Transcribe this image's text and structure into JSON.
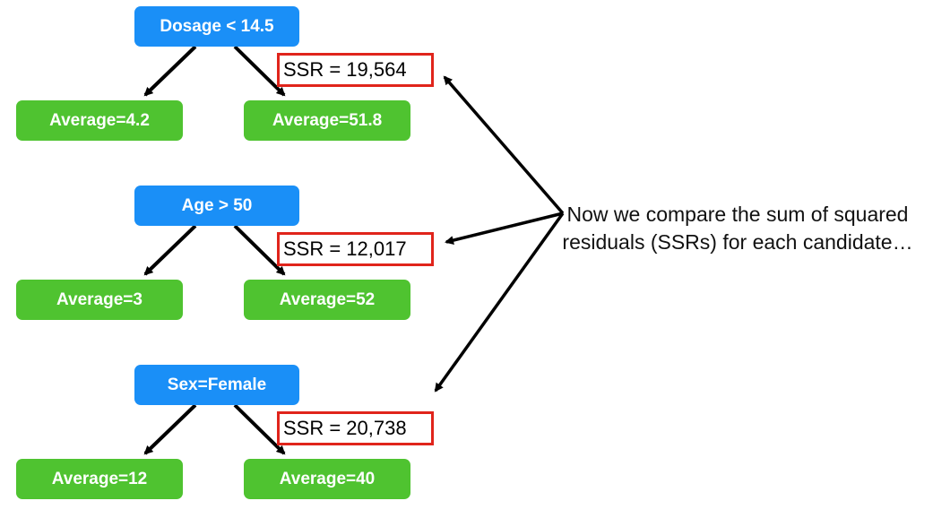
{
  "trees": [
    {
      "root": "Dosage < 14.5",
      "ssr": "SSR = 19,564",
      "left_leaf": "Average=4.2",
      "right_leaf": "Average=51.8"
    },
    {
      "root": "Age > 50",
      "ssr": "SSR = 12,017",
      "left_leaf": "Average=3",
      "right_leaf": "Average=52"
    },
    {
      "root": "Sex=Female",
      "ssr": "SSR = 20,738",
      "left_leaf": "Average=12",
      "right_leaf": "Average=40"
    }
  ],
  "note": "Now we compare the sum of squared residuals (SSRs) for each candidate…",
  "colors": {
    "root": "#1a8ff7",
    "leaf": "#4fc330",
    "ssr_border": "#e0241b",
    "arrow": "#000000"
  }
}
